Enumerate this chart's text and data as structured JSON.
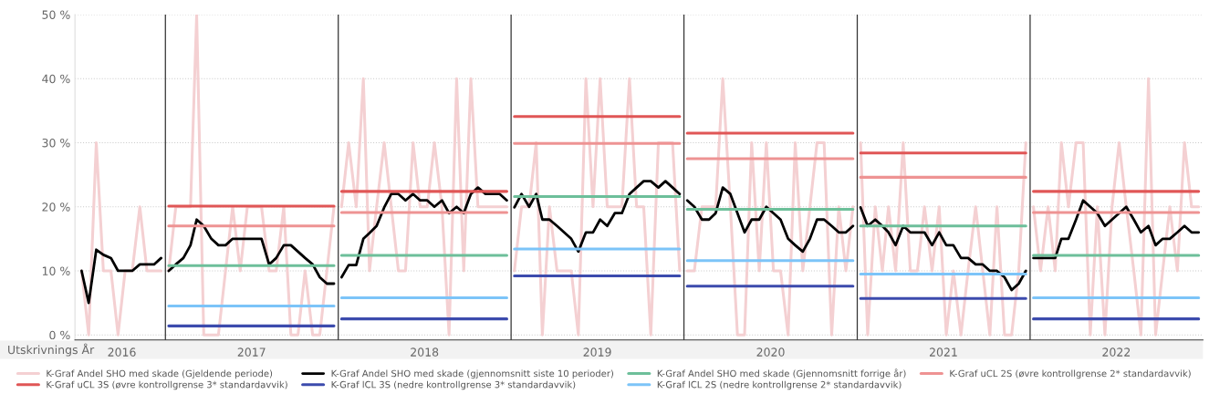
{
  "chart_data": {
    "type": "line",
    "xlabel": "Utskrivnings År",
    "grid": "y",
    "legend": "bottom",
    "x": [
      "2016-07-08",
      "2016-07-23",
      "2016-08-08",
      "2016-08-23",
      "2016-09-08",
      "2016-09-23",
      "2016-10-08",
      "2016-10-23",
      "2016-11-08",
      "2016-11-23",
      "2016-12-08",
      "2016-12-23",
      "2017-01-01",
      "2017-01-08",
      "2017-01-23",
      "2017-02-08",
      "2017-02-23",
      "2017-03-08",
      "2017-03-23",
      "2017-04-08",
      "2017-04-23",
      "2017-05-08",
      "2017-05-23",
      "2017-06-08",
      "2017-06-23",
      "2017-07-08",
      "2017-07-23",
      "2017-08-08",
      "2017-08-23",
      "2017-09-08",
      "2017-09-23",
      "2017-10-08",
      "2017-10-23",
      "2017-11-08",
      "2017-11-23",
      "2017-12-08",
      "2017-12-23",
      "2018-01-01",
      "2018-01-08",
      "2018-01-23",
      "2018-02-08",
      "2018-02-23",
      "2018-03-08",
      "2018-03-23",
      "2018-04-08",
      "2018-04-23",
      "2018-05-08",
      "2018-05-23",
      "2018-06-08",
      "2018-06-23",
      "2018-07-08",
      "2018-07-23",
      "2018-08-08",
      "2018-08-23",
      "2018-09-08",
      "2018-09-23",
      "2018-10-08",
      "2018-10-23",
      "2018-11-08",
      "2018-11-23",
      "2018-12-08",
      "2018-12-23",
      "2019-01-01",
      "2019-01-08",
      "2019-01-23",
      "2019-02-08",
      "2019-02-23",
      "2019-03-08",
      "2019-03-23",
      "2019-04-08",
      "2019-04-23",
      "2019-05-08",
      "2019-05-23",
      "2019-06-08",
      "2019-06-23",
      "2019-07-08",
      "2019-07-23",
      "2019-08-08",
      "2019-08-23",
      "2019-09-08",
      "2019-09-23",
      "2019-10-08",
      "2019-10-23",
      "2019-11-08",
      "2019-11-23",
      "2019-12-08",
      "2019-12-23",
      "2020-01-01",
      "2020-01-08",
      "2020-01-23",
      "2020-02-08",
      "2020-02-23",
      "2020-03-08",
      "2020-03-23",
      "2020-04-08",
      "2020-04-23",
      "2020-05-08",
      "2020-05-23",
      "2020-06-08",
      "2020-06-23",
      "2020-07-08",
      "2020-07-23",
      "2020-08-08",
      "2020-08-23",
      "2020-09-08",
      "2020-09-23",
      "2020-10-08",
      "2020-10-23",
      "2020-11-08",
      "2020-11-23",
      "2020-12-08",
      "2020-12-23",
      "2021-01-01",
      "2021-01-08",
      "2021-01-23",
      "2021-02-08",
      "2021-02-23",
      "2021-03-08",
      "2021-03-23",
      "2021-04-08",
      "2021-04-23",
      "2021-05-08",
      "2021-05-23",
      "2021-06-08",
      "2021-06-23",
      "2021-07-08",
      "2021-07-23",
      "2021-08-08",
      "2021-08-23",
      "2021-09-08",
      "2021-09-23",
      "2021-10-08",
      "2021-10-23",
      "2021-11-08",
      "2021-11-23",
      "2021-12-08",
      "2021-12-23",
      "2022-01-01",
      "2022-01-08",
      "2022-01-23",
      "2022-02-08",
      "2022-02-23",
      "2022-03-08",
      "2022-03-23",
      "2022-04-08",
      "2022-04-23",
      "2022-05-08",
      "2022-05-23",
      "2022-06-08",
      "2022-06-23",
      "2022-07-08",
      "2022-07-23",
      "2022-08-08",
      "2022-08-23",
      "2022-09-08",
      "2022-09-23",
      "2022-10-08",
      "2022-10-23",
      "2022-11-08",
      "2022-11-23",
      "2022-12-08",
      "2022-12-23"
    ],
    "xlim": [
      "2016-06-24",
      "2023-01-01"
    ],
    "xticks": [
      {
        "value": "2016-10-01",
        "label": "2016"
      },
      {
        "value": "2017-07-02",
        "label": "2017"
      },
      {
        "value": "2018-07-02",
        "label": "2018"
      },
      {
        "value": "2019-07-02",
        "label": "2019"
      },
      {
        "value": "2020-07-02",
        "label": "2020"
      },
      {
        "value": "2021-07-02",
        "label": "2021"
      },
      {
        "value": "2022-07-02",
        "label": "2022"
      }
    ],
    "ylim": [
      -0.8,
      50
    ],
    "yticks": [
      {
        "value": 0,
        "label": "0 %"
      },
      {
        "value": 10,
        "label": "10 %"
      },
      {
        "value": 20,
        "label": "20 %"
      },
      {
        "value": 30,
        "label": "30 %"
      },
      {
        "value": 40,
        "label": "40 %"
      },
      {
        "value": 50,
        "label": "50 %"
      }
    ],
    "ref_lines": [
      {
        "axis": "x",
        "value": "2017-01-01",
        "color": "#333333"
      },
      {
        "axis": "x",
        "value": "2018-01-01",
        "color": "#333333"
      },
      {
        "axis": "x",
        "value": "2019-01-01",
        "color": "#333333"
      },
      {
        "axis": "x",
        "value": "2020-01-01",
        "color": "#333333"
      },
      {
        "axis": "x",
        "value": "2021-01-01",
        "color": "#333333"
      },
      {
        "axis": "x",
        "value": "2022-01-01",
        "color": "#333333"
      }
    ],
    "series": [
      {
        "name": "K-Graf Andel SHO med skade (Gjeldende periode)",
        "color": "#f4d0d2",
        "values": [
          10,
          0,
          30,
          10,
          10,
          0,
          10,
          10,
          20,
          10,
          10,
          10,
          null,
          10,
          20,
          20,
          20,
          50,
          0,
          0,
          0,
          10,
          20,
          10,
          20,
          20,
          20,
          10,
          10,
          20,
          0,
          0,
          10,
          0,
          0,
          10,
          20,
          null,
          20,
          30,
          20,
          40,
          10,
          20,
          30,
          20,
          10,
          10,
          30,
          20,
          20,
          30,
          20,
          0,
          40,
          10,
          40,
          20,
          20,
          20,
          20,
          20,
          null,
          10,
          20,
          20,
          30,
          0,
          20,
          10,
          10,
          10,
          0,
          40,
          20,
          40,
          20,
          20,
          20,
          40,
          20,
          20,
          0,
          30,
          30,
          30,
          10,
          null,
          10,
          10,
          20,
          20,
          20,
          40,
          20,
          0,
          0,
          30,
          10,
          30,
          10,
          10,
          0,
          30,
          10,
          20,
          30,
          30,
          0,
          20,
          10,
          20,
          null,
          30,
          0,
          20,
          10,
          20,
          10,
          30,
          10,
          10,
          20,
          10,
          20,
          0,
          10,
          0,
          10,
          20,
          10,
          0,
          20,
          0,
          0,
          10,
          30,
          null,
          20,
          10,
          20,
          10,
          30,
          20,
          30,
          30,
          0,
          20,
          0,
          20,
          30,
          20,
          10,
          0,
          40,
          0,
          10,
          20,
          10,
          30,
          20,
          20
        ]
      },
      {
        "name": "K-Graf Andel SHO med skade (gjennomsnitt siste 10 perioder)",
        "color": "#000000",
        "values": [
          10,
          5,
          13.3,
          12.5,
          12,
          10,
          10,
          10,
          11,
          11,
          11,
          12,
          null,
          10,
          11,
          12,
          14,
          18,
          17,
          15,
          14,
          14,
          15,
          15,
          15,
          15,
          15,
          11,
          12,
          14,
          14,
          13,
          12,
          11,
          9,
          8,
          8,
          null,
          9,
          10.9,
          10.9,
          15,
          15.9,
          17,
          19.9,
          22,
          22,
          21,
          22,
          21,
          21,
          20,
          21,
          19,
          20,
          19,
          22,
          23,
          22,
          22,
          22,
          21,
          null,
          19.9,
          22,
          20,
          22,
          18,
          18,
          17,
          16,
          15,
          13,
          16,
          16,
          18,
          17,
          19,
          19,
          22,
          23,
          24,
          24,
          23,
          24,
          23,
          22,
          null,
          21,
          20,
          18,
          18,
          19,
          23,
          22,
          19,
          16,
          18,
          18,
          20,
          19,
          18,
          15,
          14,
          13,
          15,
          18,
          18,
          17,
          16,
          16,
          17,
          null,
          19.9,
          17,
          18,
          17,
          16,
          14,
          17,
          16,
          16,
          16,
          14,
          16,
          14,
          14,
          12,
          12,
          11,
          11,
          10,
          10,
          9,
          7,
          8,
          10,
          null,
          12,
          12,
          12,
          12,
          15,
          15,
          18,
          21,
          20,
          19,
          17,
          18,
          19,
          20,
          18,
          16,
          17,
          14,
          15,
          15,
          16,
          17,
          16,
          16
        ]
      },
      {
        "name": "K-Graf Andel SHO med skade (Gjennomsnitt forrige år)",
        "color": "#6dbf9a",
        "x": [
          "2017-01-08",
          "2017-12-23",
          "2018-01-01",
          "2018-01-08",
          "2018-12-23",
          "2019-01-01",
          "2019-01-08",
          "2019-12-23",
          "2020-01-01",
          "2020-01-08",
          "2020-12-23",
          "2021-01-01",
          "2021-01-08",
          "2021-12-23",
          "2022-01-01",
          "2022-01-08",
          "2022-12-23"
        ],
        "values": [
          10.8,
          10.8,
          null,
          12.4,
          12.4,
          null,
          21.6,
          21.6,
          null,
          19.6,
          19.6,
          null,
          17.0,
          17.0,
          null,
          12.4,
          12.4
        ]
      },
      {
        "name": "K-Graf uCL 2S (øvre kontrollgrense 2* standardavvik)",
        "color": "#ee9393",
        "x": [
          "2017-01-08",
          "2017-12-23",
          "2018-01-01",
          "2018-01-08",
          "2018-12-23",
          "2019-01-01",
          "2019-01-08",
          "2019-12-23",
          "2020-01-01",
          "2020-01-08",
          "2020-12-23",
          "2021-01-01",
          "2021-01-08",
          "2021-12-23",
          "2022-01-01",
          "2022-01-08",
          "2022-12-23"
        ],
        "values": [
          17.0,
          17.0,
          null,
          19.1,
          19.1,
          null,
          29.9,
          29.9,
          null,
          27.5,
          27.5,
          null,
          24.6,
          24.6,
          null,
          19.1,
          19.1
        ]
      },
      {
        "name": "K-Graf uCL 3S (øvre kontrollgrense 3* standardavvik)",
        "color": "#e05656",
        "x": [
          "2017-01-08",
          "2017-12-23",
          "2018-01-01",
          "2018-01-08",
          "2018-12-23",
          "2019-01-01",
          "2019-01-08",
          "2019-12-23",
          "2020-01-01",
          "2020-01-08",
          "2020-12-23",
          "2021-01-01",
          "2021-01-08",
          "2021-12-23",
          "2022-01-01",
          "2022-01-08",
          "2022-12-23"
        ],
        "values": [
          20.1,
          20.1,
          null,
          22.4,
          22.4,
          null,
          34.1,
          34.1,
          null,
          31.5,
          31.5,
          null,
          28.4,
          28.4,
          null,
          22.4,
          22.4
        ]
      },
      {
        "name": "K-Graf lCL 3S (nedre kontrollgrense 3* standardavvik)",
        "color": "#3c4bad",
        "x": [
          "2017-01-08",
          "2017-12-23",
          "2018-01-01",
          "2018-01-08",
          "2018-12-23",
          "2019-01-01",
          "2019-01-08",
          "2019-12-23",
          "2020-01-01",
          "2020-01-08",
          "2020-12-23",
          "2021-01-01",
          "2021-01-08",
          "2021-12-23",
          "2022-01-01",
          "2022-01-08",
          "2022-12-23"
        ],
        "values": [
          1.4,
          1.4,
          null,
          2.5,
          2.5,
          null,
          9.2,
          9.2,
          null,
          7.6,
          7.6,
          null,
          5.7,
          5.7,
          null,
          2.5,
          2.5
        ]
      },
      {
        "name": "K-Graf lCL 2S (nedre kontrollgrense 2* standardavvik)",
        "color": "#7cc4f8",
        "x": [
          "2017-01-08",
          "2017-12-23",
          "2018-01-01",
          "2018-01-08",
          "2018-12-23",
          "2019-01-01",
          "2019-01-08",
          "2019-12-23",
          "2020-01-01",
          "2020-01-08",
          "2020-12-23",
          "2021-01-01",
          "2021-01-08",
          "2021-12-23",
          "2022-01-01",
          "2022-01-08",
          "2022-12-23"
        ],
        "values": [
          4.5,
          4.5,
          null,
          5.8,
          5.8,
          null,
          13.4,
          13.4,
          null,
          11.6,
          11.6,
          null,
          9.5,
          9.5,
          null,
          5.8,
          5.8
        ]
      }
    ]
  }
}
